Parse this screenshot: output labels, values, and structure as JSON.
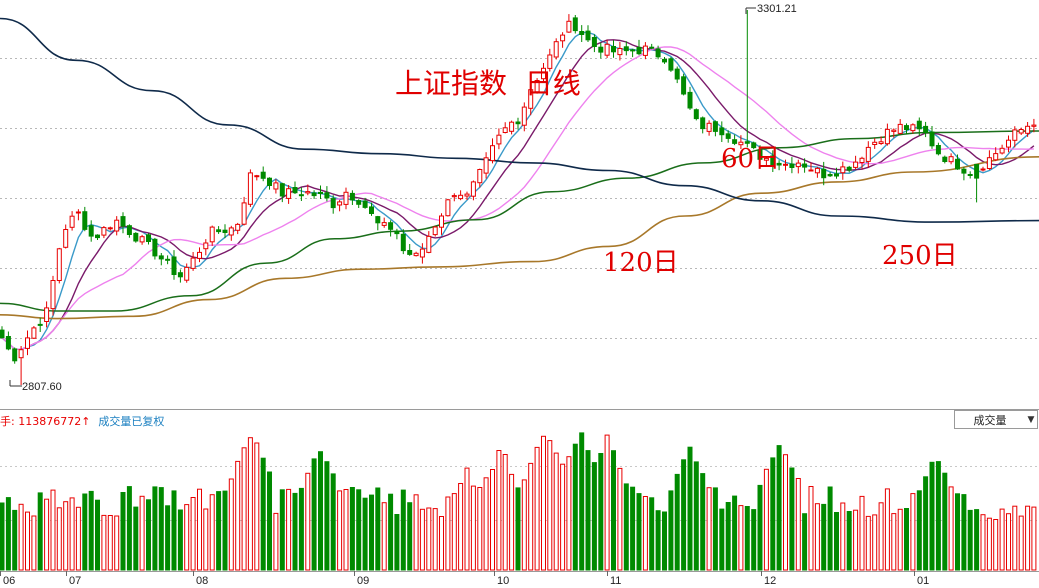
{
  "chart_data": {
    "type": "candlestick",
    "title": "上证指数  日线",
    "months": [
      "06",
      "07",
      "08",
      "09",
      "10",
      "11",
      "12",
      "01"
    ],
    "high": {
      "value": "3301.21"
    },
    "low": {
      "value": "2807.60"
    },
    "ma_labels": {
      "ma60": "60日",
      "ma120": "120日",
      "ma250": "250日"
    },
    "volume": {
      "prefix": "手: ",
      "value": "113876772↑",
      "note": "成交量已复权",
      "selector_label": "成交量"
    }
  },
  "colors": {
    "up": "#e80000",
    "down": "#008a00",
    "ma5": "#3a9ac9",
    "ma10": "#7a1a6a",
    "ma20": "#ee82ee",
    "ma60": "#1a6e1a",
    "ma120": "#a8782a",
    "ma250": "#0f2a4a"
  }
}
